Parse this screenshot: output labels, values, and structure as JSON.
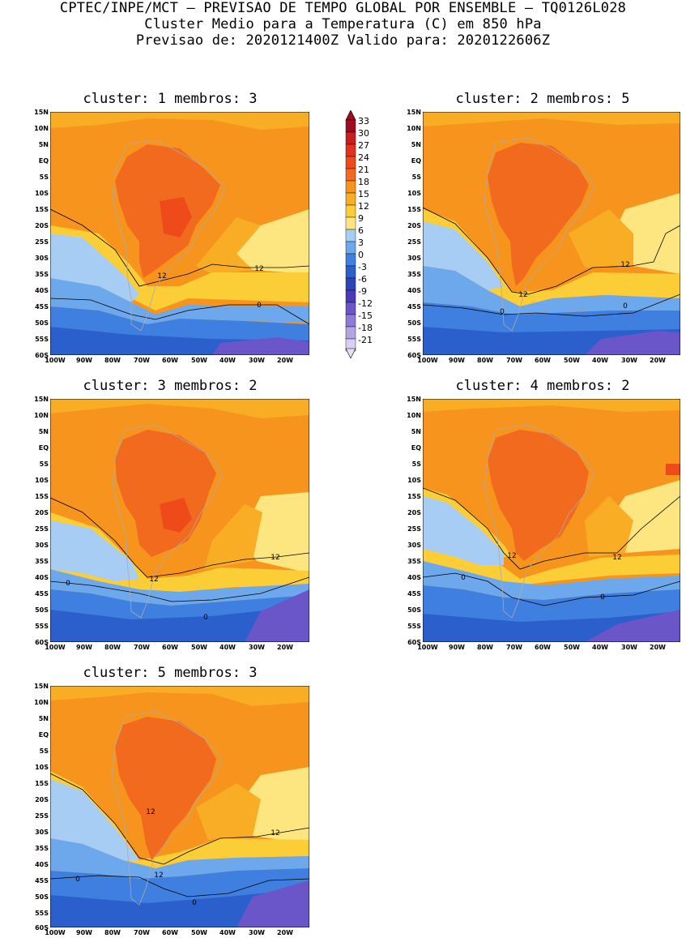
{
  "header": {
    "line1": "CPTEC/INPE/MCT – PREVISAO DE TEMPO GLOBAL POR ENSEMBLE – TQ0126L028",
    "line2": "Cluster Medio para a Temperatura (C) em 850 hPa",
    "line3": "Previsao de: 2020121400Z   Valido para: 2020122606Z"
  },
  "axes": {
    "lat_labels": [
      "15N",
      "10N",
      "5N",
      "EQ",
      "5S",
      "10S",
      "15S",
      "20S",
      "25S",
      "30S",
      "35S",
      "40S",
      "45S",
      "50S",
      "55S",
      "60S"
    ],
    "lon_labels": [
      "100W",
      "90W",
      "80W",
      "70W",
      "60W",
      "50W",
      "40W",
      "30W",
      "20W"
    ]
  },
  "colorbar": {
    "labels": [
      "33",
      "30",
      "27",
      "24",
      "21",
      "18",
      "15",
      "12",
      "9",
      "6",
      "3",
      "0",
      "-3",
      "-6",
      "-9",
      "-12",
      "-15",
      "-18",
      "-21"
    ],
    "colors": [
      "#a00a1e",
      "#c81e1e",
      "#e0321e",
      "#ef4a1a",
      "#f26a1e",
      "#f7941d",
      "#f9ad24",
      "#fbcd36",
      "#fde680",
      "#a7cdf4",
      "#6ea8ec",
      "#3f7fe0",
      "#2b5fcc",
      "#2d44b8",
      "#4a3ab5",
      "#6a55c9",
      "#8e7ad8",
      "#b3a4e6",
      "#d9cef3"
    ]
  },
  "panels": [
    {
      "title": "cluster: 1   membros: 3",
      "contour_labels": [
        "12",
        "12",
        "0"
      ]
    },
    {
      "title": "cluster: 2   membros: 5",
      "contour_labels": [
        "12",
        "12",
        "0",
        "0"
      ]
    },
    {
      "title": "cluster: 3   membros: 2",
      "contour_labels": [
        "12",
        "12",
        "0",
        "0"
      ]
    },
    {
      "title": "cluster: 4   membros: 2",
      "contour_labels": [
        "12",
        "12",
        "0",
        "0"
      ]
    },
    {
      "title": "cluster: 5   membros: 3",
      "contour_labels": [
        "12",
        "12",
        "12",
        "0",
        "0"
      ]
    }
  ],
  "map_colors": {
    "c18": "#f7941d",
    "c21": "#f26a1e",
    "c24": "#ef4a1a",
    "c15": "#f9ad24",
    "c12": "#fbcd36",
    "c9": "#fde680",
    "c6": "#a7cdf4",
    "c3": "#6ea8ec",
    "c0": "#3f7fe0",
    "cm3": "#2b5fcc",
    "cm6": "#2d44b8",
    "cm9": "#4a3ab5",
    "cm12": "#6a55c9"
  }
}
